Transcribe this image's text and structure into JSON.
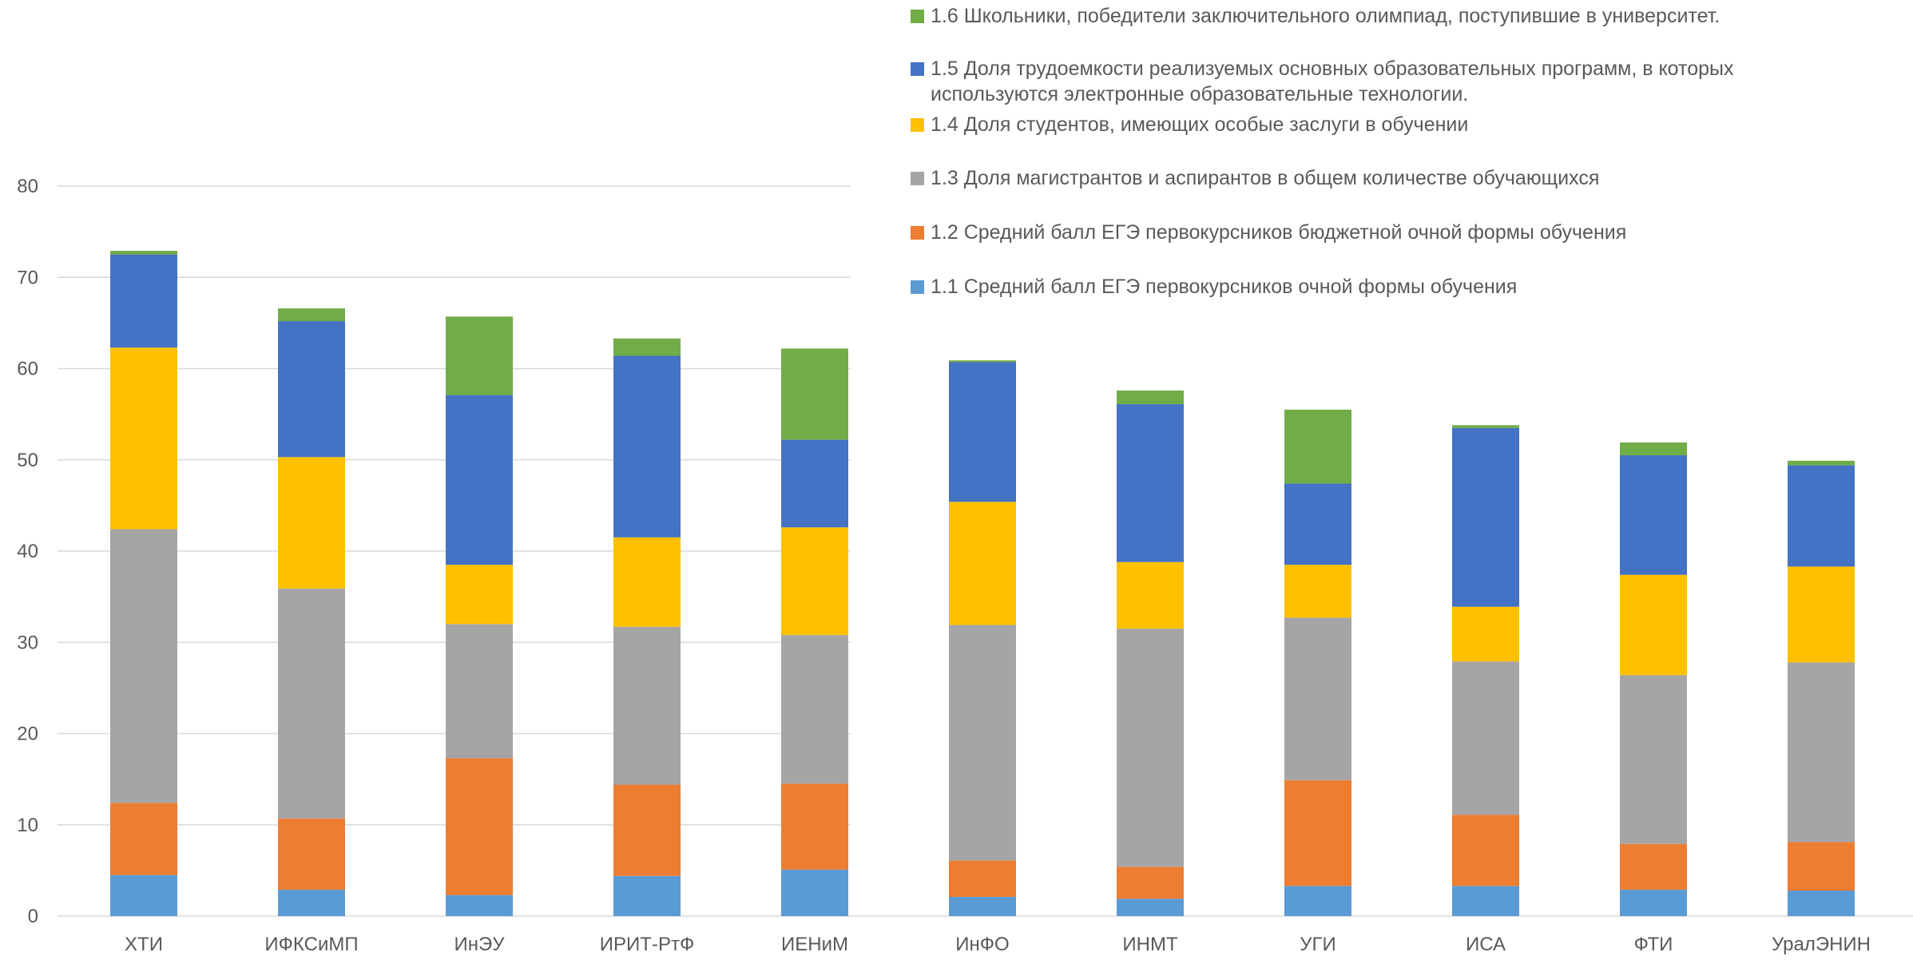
{
  "chart_data": {
    "type": "bar",
    "stacked": true,
    "title": "",
    "xlabel": "",
    "ylabel": "",
    "ylim": [
      0,
      80
    ],
    "yticks": [
      0,
      10,
      20,
      30,
      40,
      50,
      60,
      70,
      80
    ],
    "grid": true,
    "legend_position": "top-right",
    "categories": [
      "ХТИ",
      "ИФКСиМП",
      "ИнЭУ",
      "ИРИТ-РтФ",
      "ИЕНиМ",
      "ИнФО",
      "ИНМТ",
      "УГИ",
      "ИСА",
      "ФТИ",
      "УралЭНИН"
    ],
    "series": [
      {
        "name": "1.1 Средний балл ЕГЭ  первокурсников очной формы обучения",
        "color": "#5B9BD5",
        "values": [
          4.5,
          2.9,
          2.3,
          4.4,
          5.1,
          2.1,
          1.9,
          3.3,
          3.3,
          2.9,
          2.8
        ]
      },
      {
        "name": "1.2 Средний балл ЕГЭ  первокурсников бюджетной очной формы обучения",
        "color": "#ED7D31",
        "values": [
          7.9,
          7.8,
          15.0,
          10.0,
          9.4,
          4.0,
          3.5,
          11.6,
          7.8,
          5.0,
          5.3
        ]
      },
      {
        "name": "1.3 Доля магистрантов и аспирантов в общем количестве обучающихся",
        "color": "#A5A5A5",
        "values": [
          30.0,
          25.2,
          14.7,
          17.3,
          16.3,
          25.8,
          26.1,
          17.8,
          16.8,
          18.5,
          19.7
        ]
      },
      {
        "name": "1.4 Доля студентов, имеющих особые заслуги в обучении",
        "color": "#FFC000",
        "values": [
          19.9,
          14.4,
          6.5,
          9.8,
          11.8,
          13.5,
          7.3,
          5.8,
          6.0,
          11.0,
          10.5
        ]
      },
      {
        "name": "1.5 Доля трудоемкости реализуемых основных образовательных программ, в которых\nиспользуются электронные образовательные технологии.",
        "color": "#4472C4",
        "values": [
          10.2,
          14.9,
          18.6,
          19.9,
          9.6,
          15.3,
          17.3,
          8.9,
          19.6,
          13.1,
          11.1
        ]
      },
      {
        "name": "1.6 Школьники, победители заключительного олимпиад, поступившие в университет.",
        "color": "#70AD47",
        "values": [
          0.4,
          1.4,
          8.6,
          1.9,
          10.0,
          0.2,
          1.5,
          8.1,
          0.3,
          1.4,
          0.5
        ]
      }
    ]
  }
}
